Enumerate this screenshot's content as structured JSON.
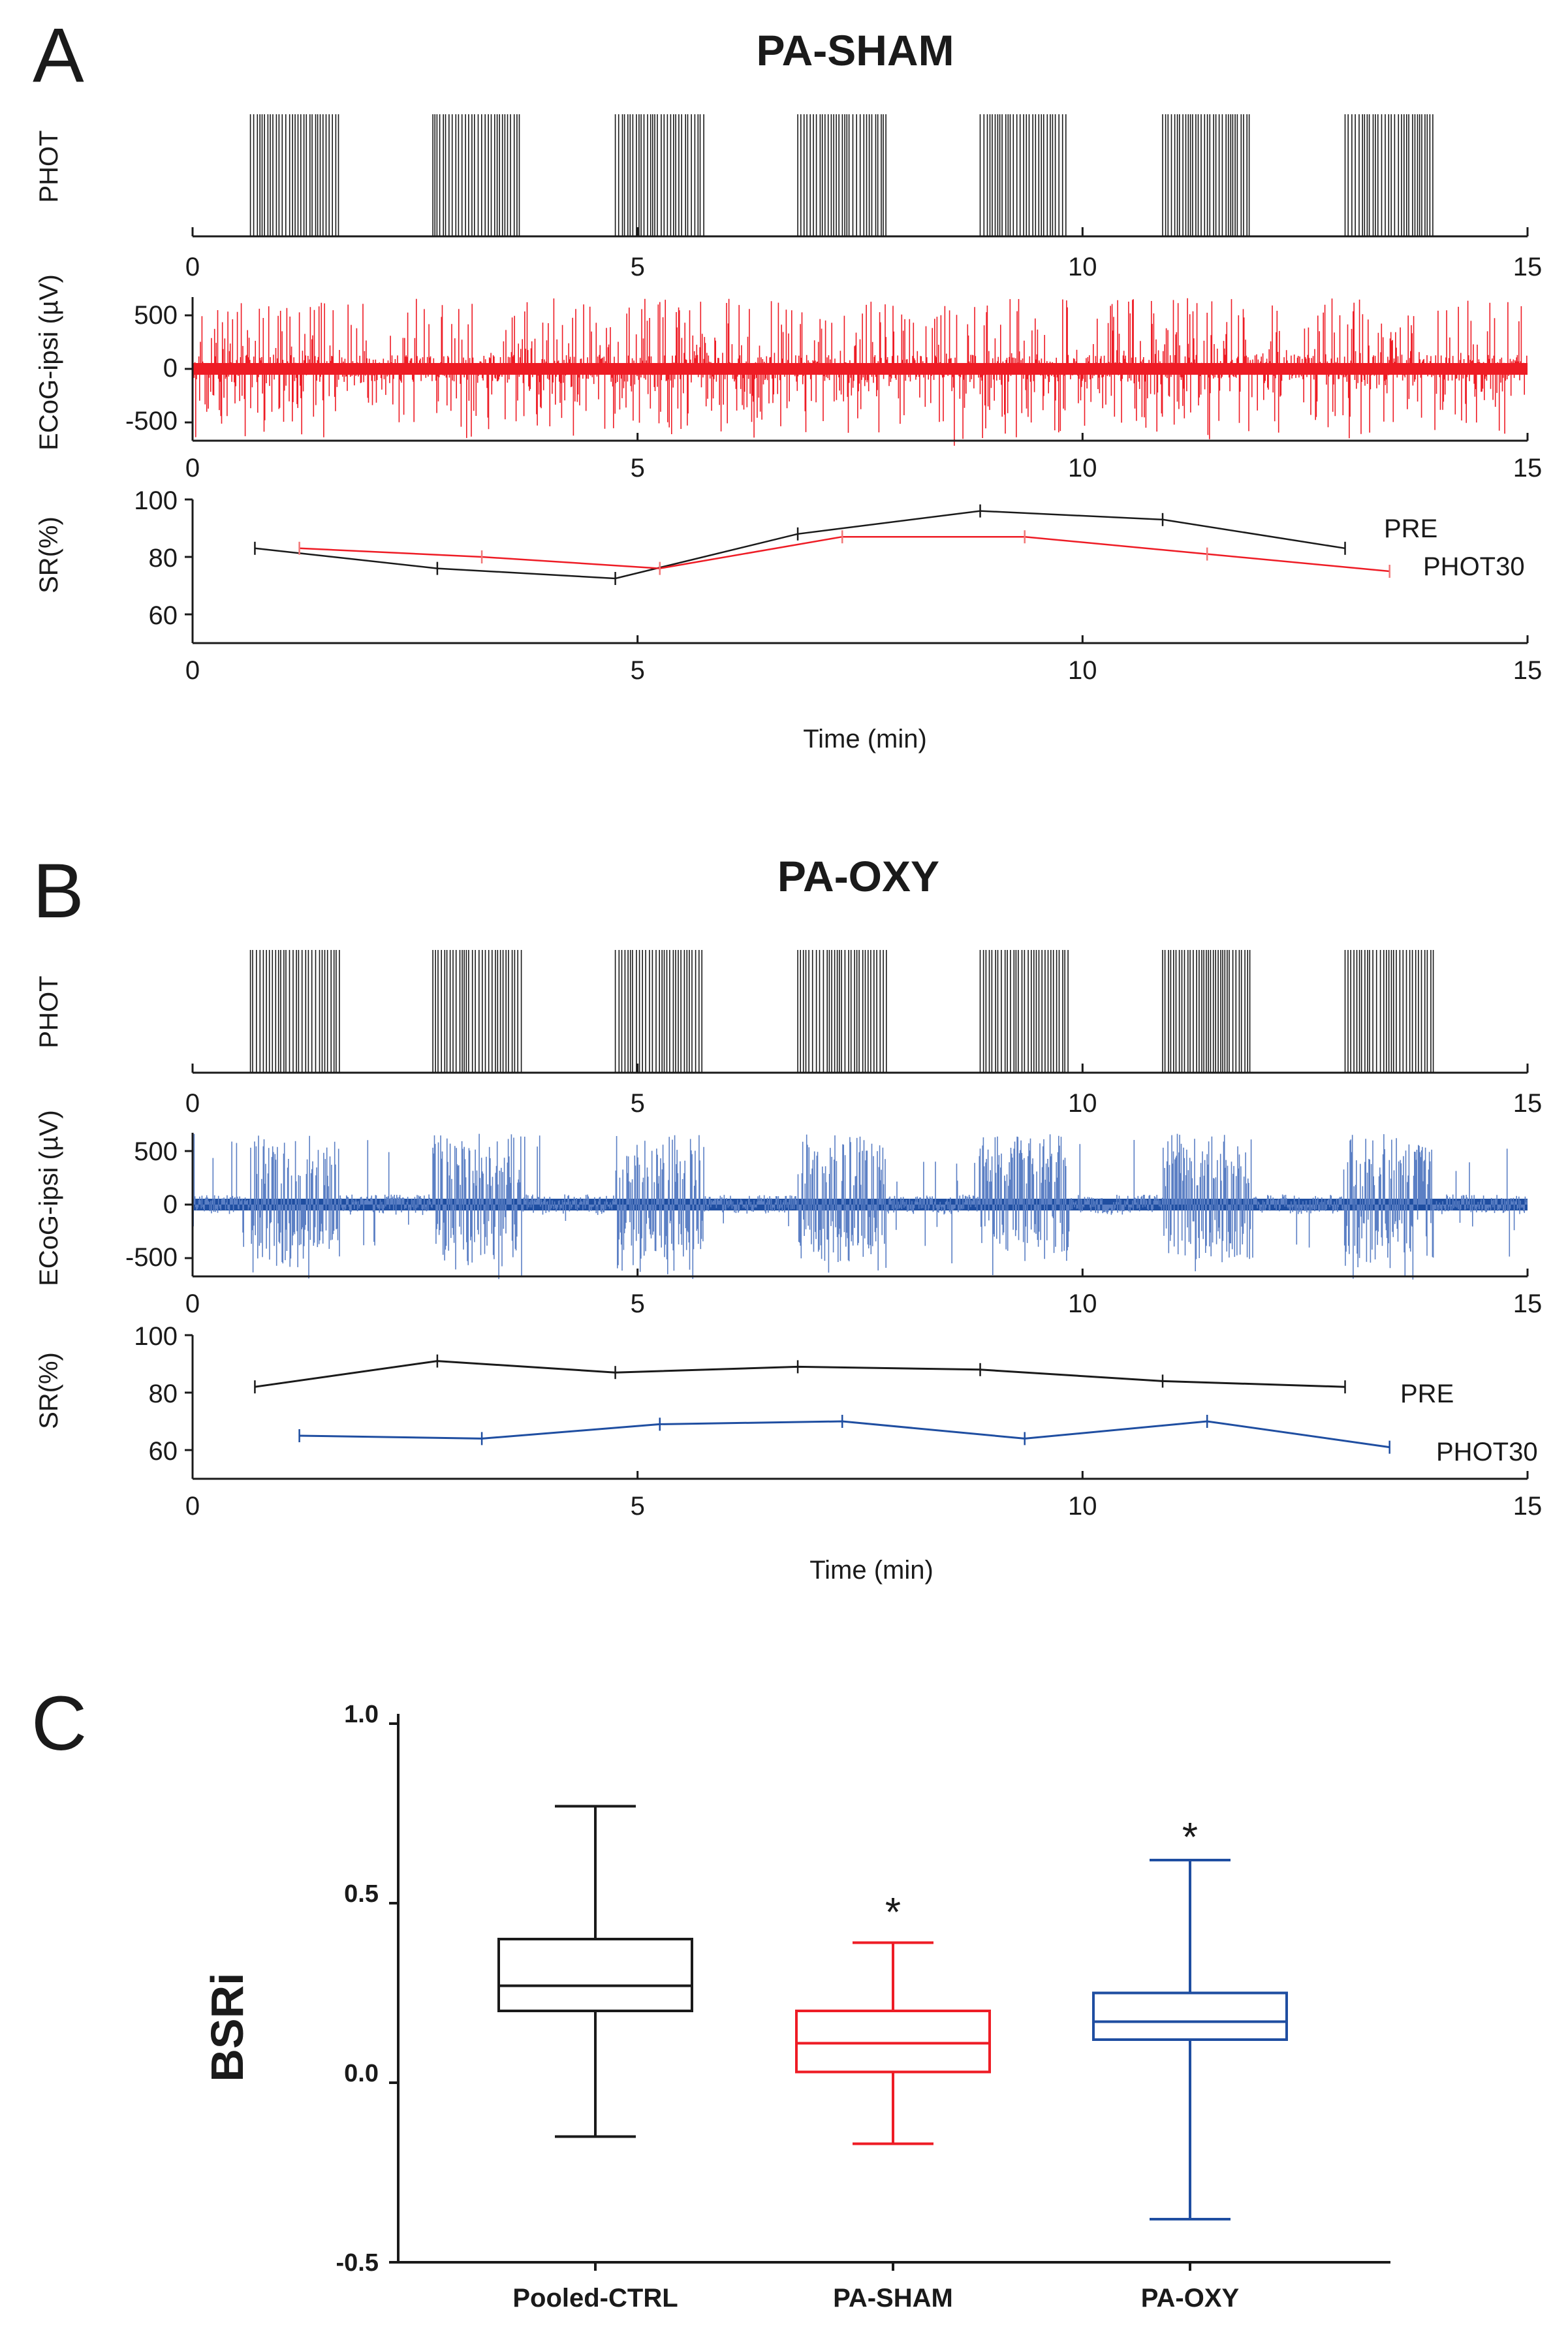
{
  "panel_a": {
    "letter": "A",
    "title": "PA-SHAM",
    "phot_ylabel": "PHOT",
    "ecog_ylabel": "ECoG-ipsi (µV)",
    "sr_ylabel": "SR(%)",
    "xlabel": "Time (min)",
    "x_ticks": [
      "0",
      "5",
      "10",
      "15"
    ],
    "ecog_ticks": [
      "500",
      "0",
      "-500"
    ],
    "sr_ticks": [
      "100",
      "80",
      "60"
    ],
    "legend_pre": "PRE",
    "legend_phot": "PHOT30"
  },
  "panel_b": {
    "letter": "B",
    "title": "PA-OXY",
    "phot_ylabel": "PHOT",
    "ecog_ylabel": "ECoG-ipsi (µV)",
    "sr_ylabel": "SR(%)",
    "xlabel": "Time (min)",
    "x_ticks": [
      "0",
      "5",
      "10",
      "15"
    ],
    "ecog_ticks": [
      "500",
      "0",
      "-500"
    ],
    "sr_ticks": [
      "100",
      "80",
      "60"
    ],
    "legend_pre": "PRE",
    "legend_phot": "PHOT30"
  },
  "panel_c": {
    "letter": "C",
    "ylabel": "BSRi",
    "y_ticks": [
      "1.0",
      "0.5",
      "0.0",
      "-0.5"
    ],
    "categories": [
      "Pooled-CTRL",
      "PA-SHAM",
      "PA-OXY"
    ],
    "star": "*"
  },
  "colors": {
    "ink": "#1a1a1a",
    "sham": "#ee1c25",
    "oxy": "#1f4ea1",
    "sham_light": "#f27777",
    "oxy_light": "#5b7fc4"
  },
  "chart_data": [
    {
      "type": "line",
      "title": "PA-SHAM",
      "xlabel": "Time (min)",
      "ylabel": "SR(%)",
      "xlim": [
        0,
        15
      ],
      "ylim": [
        50,
        100
      ],
      "phot_blocks_min": [
        [
          0.65,
          1.65
        ],
        [
          2.7,
          3.7
        ],
        [
          4.75,
          5.75
        ],
        [
          6.8,
          7.8
        ],
        [
          8.85,
          9.85
        ],
        [
          10.9,
          11.9
        ],
        [
          12.95,
          13.95
        ]
      ],
      "ecog_ylim": [
        -700,
        700
      ],
      "series": [
        {
          "name": "PRE",
          "x": [
            0.7,
            2.75,
            4.75,
            6.8,
            8.85,
            10.9,
            12.95
          ],
          "y": [
            83,
            76,
            72.5,
            88,
            96,
            93,
            83
          ]
        },
        {
          "name": "PHOT30",
          "x": [
            1.2,
            3.25,
            5.25,
            7.3,
            9.35,
            11.4,
            13.45
          ],
          "y": [
            83,
            80,
            76,
            87,
            87,
            81,
            75
          ]
        }
      ]
    },
    {
      "type": "line",
      "title": "PA-OXY",
      "xlabel": "Time (min)",
      "ylabel": "SR(%)",
      "xlim": [
        0,
        15
      ],
      "ylim": [
        50,
        100
      ],
      "phot_blocks_min": [
        [
          0.65,
          1.65
        ],
        [
          2.7,
          3.7
        ],
        [
          4.75,
          5.75
        ],
        [
          6.8,
          7.8
        ],
        [
          8.85,
          9.85
        ],
        [
          10.9,
          11.9
        ],
        [
          12.95,
          13.95
        ]
      ],
      "ecog_ylim": [
        -700,
        700
      ],
      "series": [
        {
          "name": "PRE",
          "x": [
            0.7,
            2.75,
            4.75,
            6.8,
            8.85,
            10.9,
            12.95
          ],
          "y": [
            82,
            91,
            87,
            89,
            88,
            84,
            82
          ]
        },
        {
          "name": "PHOT30",
          "x": [
            1.2,
            3.25,
            5.25,
            7.3,
            9.35,
            11.4,
            13.45
          ],
          "y": [
            65,
            64,
            69,
            70,
            64,
            70,
            61
          ]
        }
      ]
    },
    {
      "type": "box",
      "ylabel": "BSRi",
      "ylim": [
        -0.5,
        1.0
      ],
      "categories": [
        "Pooled-CTRL",
        "PA-SHAM",
        "PA-OXY"
      ],
      "series": [
        {
          "name": "Pooled-CTRL",
          "min": -0.15,
          "q1": 0.2,
          "median": 0.27,
          "q3": 0.4,
          "max": 0.77,
          "significant": false
        },
        {
          "name": "PA-SHAM",
          "min": -0.17,
          "q1": 0.03,
          "median": 0.11,
          "q3": 0.2,
          "max": 0.39,
          "significant": true
        },
        {
          "name": "PA-OXY",
          "min": -0.38,
          "q1": 0.12,
          "median": 0.17,
          "q3": 0.25,
          "max": 0.62,
          "significant": true
        }
      ]
    }
  ]
}
